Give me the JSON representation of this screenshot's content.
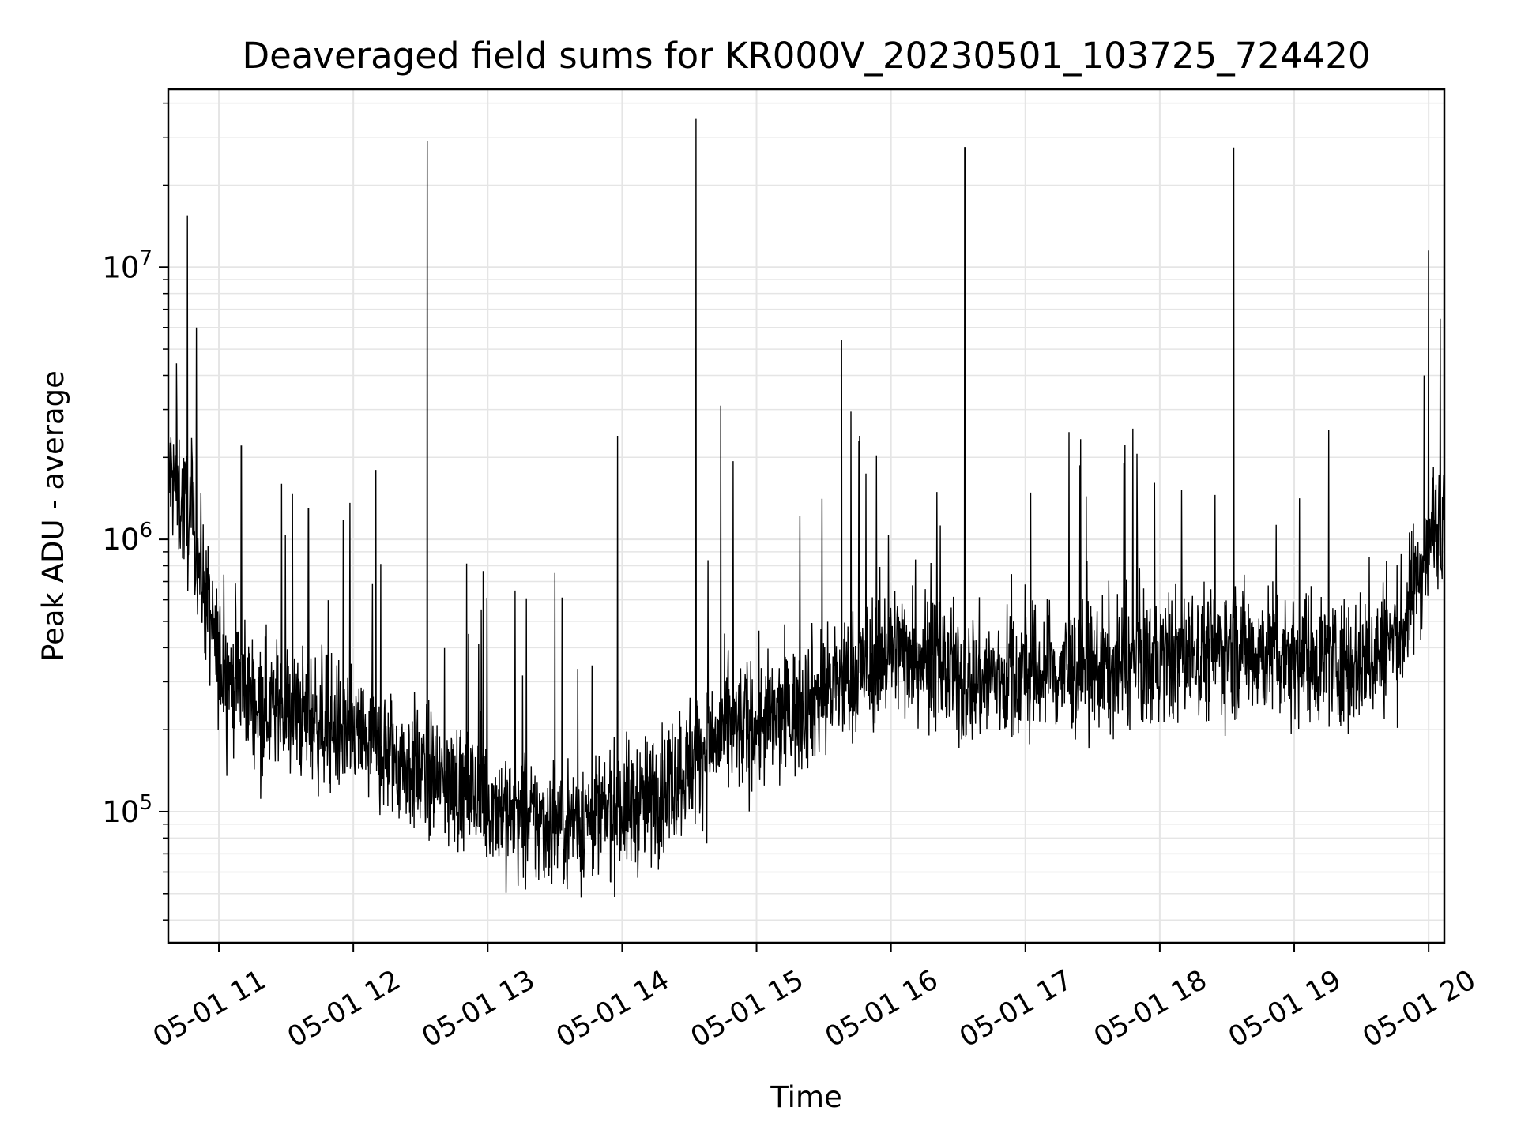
{
  "chart_data": {
    "type": "line",
    "title": "Deaveraged field sums for KR000V_20230501_103725_724420",
    "xlabel": "Time",
    "ylabel": "Peak ADU - average",
    "yscale": "log",
    "xlim": [
      "2023-05-01 10:37:25",
      "2023-05-01 20:07:00"
    ],
    "ylim": [
      33000,
      45000000
    ],
    "x_tick_labels": [
      "05-01 11",
      "05-01 12",
      "05-01 13",
      "05-01 14",
      "05-01 15",
      "05-01 16",
      "05-01 17",
      "05-01 18",
      "05-01 19",
      "05-01 20"
    ],
    "y_tick_labels": [
      {
        "value": 100000,
        "base": "10",
        "exp": "5"
      },
      {
        "value": 1000000,
        "base": "10",
        "exp": "6"
      },
      {
        "value": 10000000,
        "base": "10",
        "exp": "7"
      }
    ],
    "grid": true,
    "line_color": "#000000",
    "grid_color": "#e5e5e5",
    "series": [
      {
        "baseline": {
          "hours": [
            10.62,
            10.8,
            11.0,
            11.3,
            11.7,
            12.0,
            12.5,
            13.0,
            13.3,
            13.8,
            14.2,
            14.5,
            14.8,
            15.2,
            15.5,
            15.8,
            16.0,
            16.3,
            16.5,
            17.0,
            17.5,
            18.0,
            18.5,
            19.0,
            19.5,
            19.8,
            20.0,
            20.12
          ],
          "values": [
            1800000,
            1100000,
            350000,
            250000,
            220000,
            190000,
            140000,
            110000,
            90000,
            95000,
            110000,
            150000,
            200000,
            220000,
            280000,
            330000,
            400000,
            370000,
            300000,
            320000,
            330000,
            360000,
            400000,
            380000,
            350000,
            450000,
            1000000,
            1400000
          ]
        },
        "spikes": [
          {
            "time": "2023-05-01 10:46",
            "value": 15500000
          },
          {
            "time": "2023-05-01 10:50",
            "value": 6000000
          },
          {
            "time": "2023-05-01 11:10",
            "value": 2200000
          },
          {
            "time": "2023-05-01 11:28",
            "value": 1600000
          },
          {
            "time": "2023-05-01 11:40",
            "value": 1300000
          },
          {
            "time": "2023-05-01 12:10",
            "value": 1800000
          },
          {
            "time": "2023-05-01 12:33",
            "value": 29000000
          },
          {
            "time": "2023-05-01 13:58",
            "value": 2400000
          },
          {
            "time": "2023-05-01 14:33",
            "value": 35000000
          },
          {
            "time": "2023-05-01 14:44",
            "value": 3100000
          },
          {
            "time": "2023-05-01 15:38",
            "value": 5400000
          },
          {
            "time": "2023-05-01 15:46",
            "value": 2400000
          },
          {
            "time": "2023-05-01 16:33",
            "value": 27500000
          },
          {
            "time": "2023-05-01 18:33",
            "value": 27500000
          },
          {
            "time": "2023-05-01 19:58",
            "value": 4000000
          },
          {
            "time": "2023-05-01 20:00",
            "value": 11500000
          }
        ]
      }
    ]
  }
}
